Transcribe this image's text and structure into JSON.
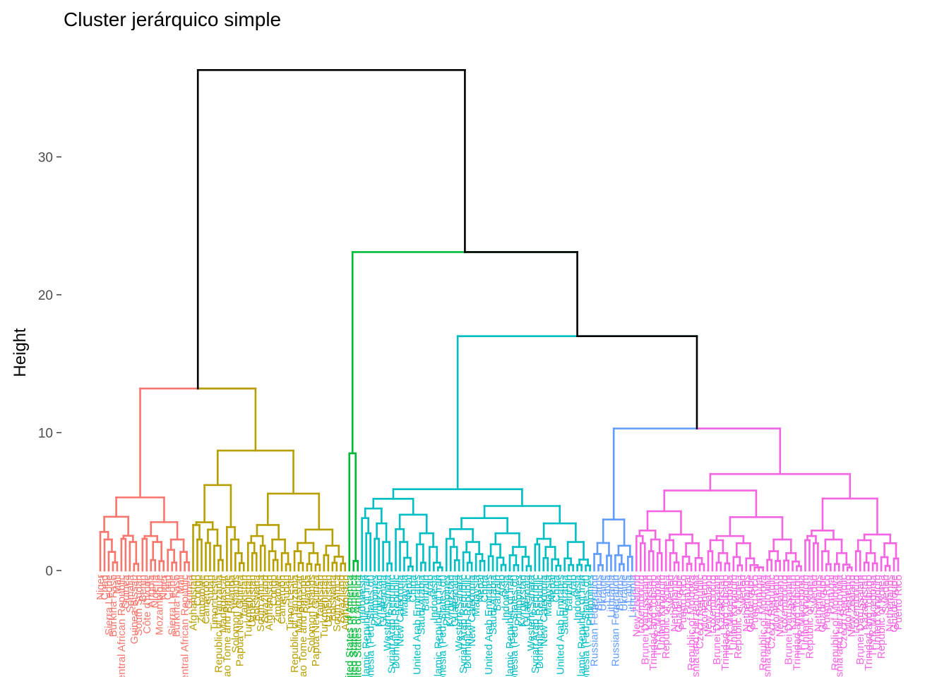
{
  "chart_data": {
    "type": "dendrogram",
    "title": "Cluster jerárquico simple",
    "ylabel": "Height",
    "xlabel": "",
    "ylim": [
      0,
      36.5
    ],
    "y_ticks": [
      0,
      10,
      20,
      30
    ],
    "grid": false,
    "legend": "none",
    "root_height": 36.3,
    "colors": {
      "top": "#000000",
      "cluster_1": "#F8766D",
      "cluster_2": "#B79F00",
      "cluster_3": "#00BA38",
      "cluster_4": "#00BFC4",
      "cluster_5": "#619CFF",
      "cluster_6": "#F564E3"
    },
    "top_merges": [
      {
        "height": 36.3,
        "joins": [
          "A",
          "B"
        ]
      },
      {
        "height": 13.2,
        "joins": [
          "cluster_1",
          "cluster_2"
        ],
        "name": "A"
      },
      {
        "height": 23.1,
        "joins": [
          "cluster_3",
          "C"
        ],
        "name": "B"
      },
      {
        "height": 17.0,
        "joins": [
          "cluster_4",
          "D"
        ],
        "name": "C"
      },
      {
        "height": 10.3,
        "joins": [
          "cluster_5",
          "cluster_6"
        ],
        "name": "D"
      }
    ],
    "clusters": [
      {
        "key": "cluster_1",
        "leaves": 22,
        "root_height": 13.2,
        "sub_heights": [
          5.3,
          3.9,
          2.8,
          2.5,
          2.3,
          1.5
        ],
        "labels": [
          "Niger",
          "Chad",
          "Sierra Leone",
          "Burkina Faso",
          "Mali",
          "Central African Republic",
          "Guinea",
          "Somalia",
          "Guinea-Bissau",
          "South Sudan",
          "Benin",
          "Côte d'Ivoire",
          "Angola",
          "Nigeria",
          "Mozambique"
        ]
      },
      {
        "key": "cluster_2",
        "leaves": 37,
        "root_height": 13.2,
        "sub_heights": [
          8.7,
          6.2,
          3.5,
          3.3,
          2.5,
          2.0,
          1.4
        ],
        "labels": [
          "Afghanistan",
          "Congo",
          "Zimbabwe",
          "Cameroon",
          "Sudan",
          "Timor-Leste",
          "Republic of Tanzania",
          "Madagascar",
          "Sao Tome and Principe",
          "Rwanda",
          "Solomon Islands",
          "Papua New Guinea",
          "Tajikistan",
          "Turkmenistan",
          "Uzbekistan",
          "Botswana",
          "South Africa",
          "Swaziland"
        ]
      },
      {
        "key": "cluster_3",
        "leaves": 3,
        "root_height": 9.2,
        "sub_heights": [
          8.5
        ],
        "labels": [
          "United States of America"
        ]
      },
      {
        "key": "cluster_4",
        "leaves": 55,
        "root_height": 17.0,
        "sub_heights": [
          5.9,
          5.2,
          4.5,
          3.8,
          3.0,
          2.3,
          1.9
        ],
        "labels": [
          "Indonesia",
          "Islamic Republic of Iran",
          "Micronesia (Fed. States of)",
          "Philippines",
          "Kyrgyzstan",
          "Guatemala",
          "Western Sahara",
          "Syrian Arab Republic",
          "Dominican Republic",
          "New Caledonia",
          "Malaysia",
          "Nepal",
          "China",
          "United Arab Emirates",
          "Saudi Arabia",
          "Bahrain",
          "Arab"
        ]
      },
      {
        "key": "cluster_5",
        "leaves": 10,
        "root_height": 10.3,
        "sub_heights": [
          3.7,
          2.0,
          1.2
        ],
        "labels": [
          "Russian Federation",
          "Belarus",
          "Ukraine",
          "Latvia",
          "Lithuania"
        ]
      },
      {
        "key": "cluster_6",
        "leaves": 63,
        "root_height": 10.3,
        "sub_heights": [
          7.0,
          5.8,
          4.3,
          2.9,
          2.5,
          2.2,
          1.4
        ],
        "labels": [
          "New Zealand",
          "Luxembourg",
          "Brunei Darussalam",
          "Kazakhstan",
          "Trinidad and Tobago",
          "TFYR Macedonia",
          "United Kingdom",
          "Republic of Korea",
          "Sweden",
          "Netherlands",
          "Guadeloupe",
          "Puerto Rico",
          "Portugal",
          "Republic of Moldova",
          "Bosnia and Herzegovina",
          "Czech Republic",
          "Montenegro"
        ]
      }
    ]
  }
}
